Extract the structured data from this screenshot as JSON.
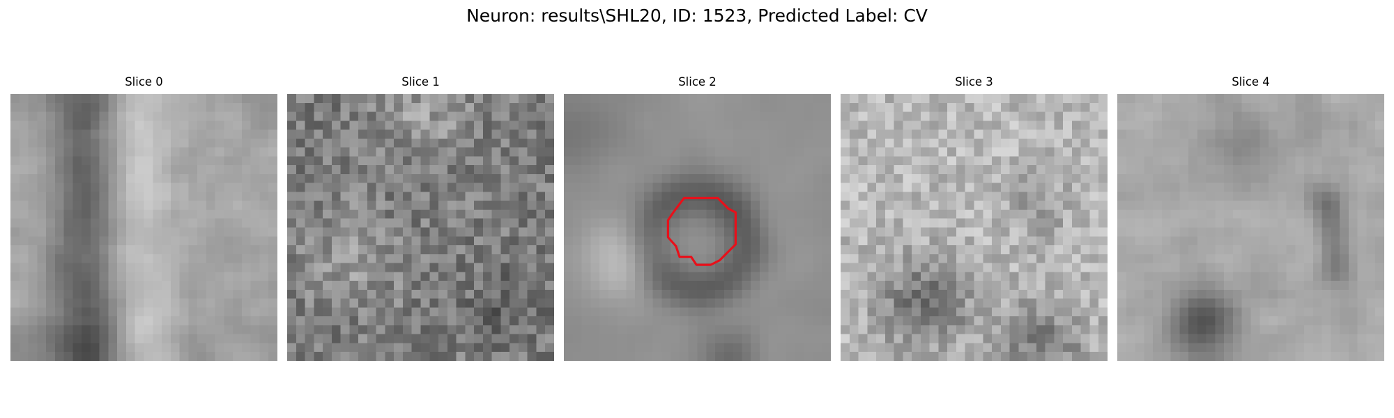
{
  "figure": {
    "title": "Neuron: results\\SHL20, ID: 1523, Predicted Label: CV"
  },
  "panels": [
    {
      "title": "Slice 0",
      "image": "grayscale-noise-patch-vertical-dark-band",
      "contour": false
    },
    {
      "title": "Slice 1",
      "image": "grayscale-noise-patch-mottled",
      "contour": false
    },
    {
      "title": "Slice 2",
      "image": "grayscale-noise-patch-ring",
      "contour": true,
      "contour_color": "#e8101a"
    },
    {
      "title": "Slice 3",
      "image": "grayscale-noise-patch-light",
      "contour": false
    },
    {
      "title": "Slice 4",
      "image": "grayscale-noise-patch-dark-blob",
      "contour": false
    }
  ]
}
